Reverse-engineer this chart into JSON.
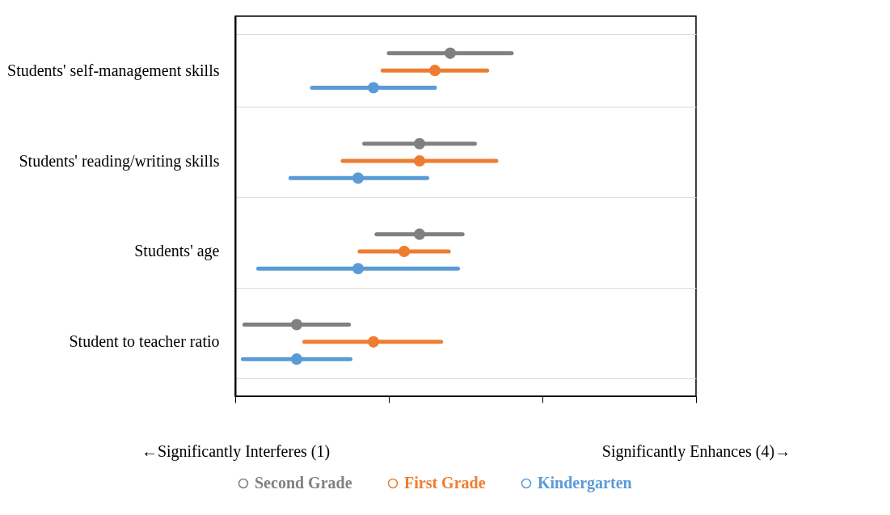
{
  "chart_data": {
    "type": "bar",
    "orientation": "horizontal",
    "categories": [
      "Students' self-management skills",
      "Students' reading/writing skills",
      "Students' age",
      "Student to teacher ratio"
    ],
    "series": [
      {
        "name": "Second Grade",
        "type": "bar",
        "color": "#808080",
        "base": [
          2.0,
          1.84,
          1.92,
          1.06
        ],
        "values": [
          0.8,
          0.72,
          0.56,
          0.68
        ]
      },
      {
        "name": "First Grade",
        "type": "bar",
        "color": "#ed7d31",
        "base": [
          1.96,
          1.7,
          1.81,
          1.45
        ],
        "values": [
          0.68,
          1.0,
          0.58,
          0.89
        ]
      },
      {
        "name": "Kindergarten",
        "type": "bar",
        "color": "#5b9bd5",
        "base": [
          1.5,
          1.36,
          1.15,
          1.05
        ],
        "values": [
          0.8,
          0.89,
          1.3,
          0.7
        ]
      },
      {
        "type": "scatter",
        "color": "#808080",
        "x": [
          "Students' self-management skills",
          "Students' reading/writing skills",
          "Students' age",
          "Student to teacher ratio"
        ],
        "values": [
          2.4,
          2.2,
          2.2,
          1.4
        ]
      },
      {
        "type": "scatter",
        "color": "#ed7d31",
        "x": [
          "Students' self-management skills",
          "Students' reading/writing skills",
          "Students' age",
          "Student to teacher ratio"
        ],
        "values": [
          2.3,
          2.2,
          2.1,
          1.9
        ]
      },
      {
        "type": "scatter",
        "color": "#5b9bd5",
        "x": [
          "Students' self-management skills",
          "Students' reading/writing skills",
          "Students' age",
          "Student to teacher ratio"
        ],
        "values": [
          1.9,
          1.8,
          1.8,
          1.4
        ]
      }
    ],
    "xlim": [
      1,
      4
    ],
    "xticks": [
      {
        "value": 1,
        "label": "←Significantly Interferes (1)"
      },
      {
        "value": 2,
        "label": null
      },
      {
        "value": 3,
        "label": null
      },
      {
        "value": 4,
        "label": "Significantly Enhances (4)→"
      }
    ],
    "grid": "y",
    "legend": "bottom",
    "marker": "circle"
  }
}
